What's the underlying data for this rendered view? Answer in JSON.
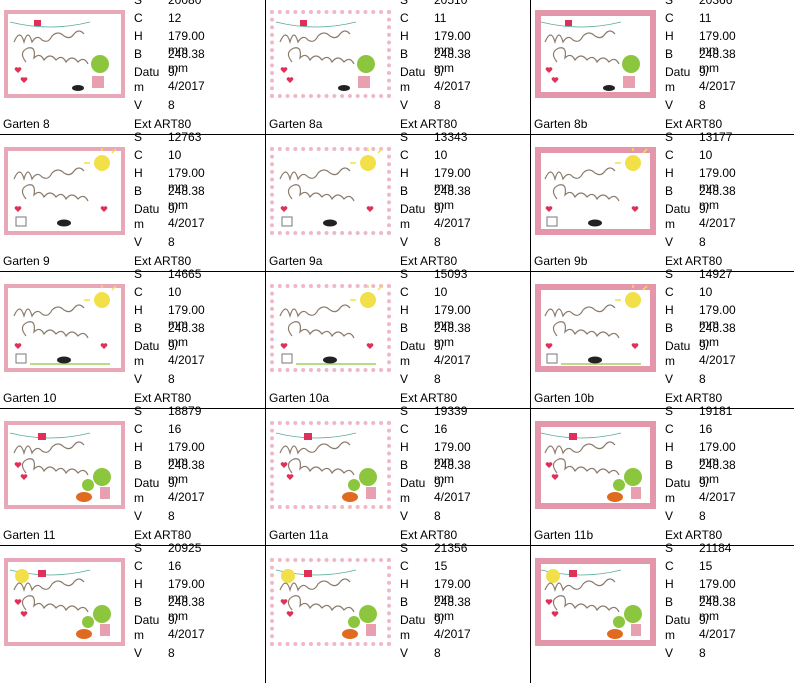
{
  "labels": {
    "s": "S",
    "c": "C",
    "h": "H",
    "b": "B",
    "datum": "Datu",
    "datum2": "m",
    "v": "V",
    "ext": "Ext"
  },
  "items": [
    {
      "name": "Garten 8",
      "s": "20080",
      "c": "12",
      "h": "179.00 mm",
      "b": "248.38 mm",
      "date": "9/ 4/2017",
      "v": "8",
      "ext": "ART80",
      "variant": "base",
      "motif": "8"
    },
    {
      "name": "Garten 8a",
      "s": "20510",
      "c": "11",
      "h": "179.00 mm",
      "b": "248.38 mm",
      "date": "9/ 4/2017",
      "v": "8",
      "ext": "ART80",
      "variant": "a",
      "motif": "8"
    },
    {
      "name": "Garten 8b",
      "s": "20366",
      "c": "11",
      "h": "179.00 mm",
      "b": "248.38 mm",
      "date": "9/ 4/2017",
      "v": "8",
      "ext": "ART80",
      "variant": "b",
      "motif": "8"
    },
    {
      "name": "Garten 9",
      "s": "12763",
      "c": "10",
      "h": "179.00 mm",
      "b": "248.38 mm",
      "date": "9/ 4/2017",
      "v": "8",
      "ext": "ART80",
      "variant": "base",
      "motif": "9"
    },
    {
      "name": "Garten 9a",
      "s": "13343",
      "c": "10",
      "h": "179.00 mm",
      "b": "248.38 mm",
      "date": "9/ 4/2017",
      "v": "8",
      "ext": "ART80",
      "variant": "a",
      "motif": "9"
    },
    {
      "name": "Garten 9b",
      "s": "13177",
      "c": "10",
      "h": "179.00 mm",
      "b": "248.38 mm",
      "date": "9/ 4/2017",
      "v": "8",
      "ext": "ART80",
      "variant": "b",
      "motif": "9"
    },
    {
      "name": "Garten 10",
      "s": "14665",
      "c": "10",
      "h": "179.00 mm",
      "b": "248.38 mm",
      "date": "9/ 4/2017",
      "v": "8",
      "ext": "ART80",
      "variant": "base",
      "motif": "10"
    },
    {
      "name": "Garten 10a",
      "s": "15093",
      "c": "10",
      "h": "179.00 mm",
      "b": "248.38 mm",
      "date": "9/ 4/2017",
      "v": "8",
      "ext": "ART80",
      "variant": "a",
      "motif": "10"
    },
    {
      "name": "Garten 10b",
      "s": "14927",
      "c": "10",
      "h": "179.00 mm",
      "b": "248.38 mm",
      "date": "9/ 4/2017",
      "v": "8",
      "ext": "ART80",
      "variant": "b",
      "motif": "10"
    },
    {
      "name": "Garten 11",
      "s": "18879",
      "c": "16",
      "h": "179.00 mm",
      "b": "248.38 mm",
      "date": "9/ 4/2017",
      "v": "8",
      "ext": "ART80",
      "variant": "base",
      "motif": "11"
    },
    {
      "name": "Garten 11a",
      "s": "19339",
      "c": "16",
      "h": "179.00 mm",
      "b": "248.38 mm",
      "date": "9/ 4/2017",
      "v": "8",
      "ext": "ART80",
      "variant": "a",
      "motif": "11"
    },
    {
      "name": "Garten 11b",
      "s": "19181",
      "c": "16",
      "h": "179.00 mm",
      "b": "248.38 mm",
      "date": "9/ 4/2017",
      "v": "8",
      "ext": "ART80",
      "variant": "b",
      "motif": "11"
    },
    {
      "name": "",
      "s": "20925",
      "c": "16",
      "h": "179.00 mm",
      "b": "248.38 mm",
      "date": "9/ 4/2017",
      "v": "8",
      "ext": "",
      "variant": "base",
      "motif": "12"
    },
    {
      "name": "",
      "s": "21356",
      "c": "15",
      "h": "179.00 mm",
      "b": "248.38 mm",
      "date": "9/ 4/2017",
      "v": "8",
      "ext": "",
      "variant": "a",
      "motif": "12"
    },
    {
      "name": "",
      "s": "21184",
      "c": "15",
      "h": "179.00 mm",
      "b": "248.38 mm",
      "date": "9/ 4/2017",
      "v": "8",
      "ext": "",
      "variant": "b",
      "motif": "12"
    }
  ],
  "colors": {
    "frame": "#e8a8b8",
    "heart": "#e0305a",
    "sun": "#f2e04a",
    "green": "#8cc63f",
    "cat": "#222222",
    "hedgehog": "#e06a20",
    "lettering": "#8a7a6a"
  }
}
